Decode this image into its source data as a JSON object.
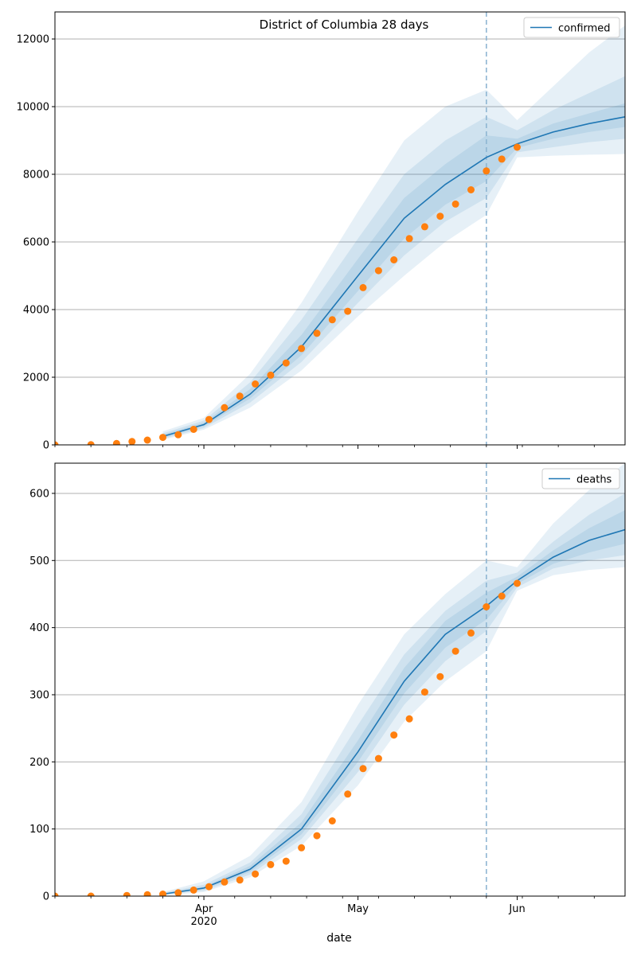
{
  "chart_data": [
    {
      "type": "line",
      "title": "District of Columbia 28 days",
      "xlabel": "",
      "ylabel": "",
      "ylim": [
        0,
        12800
      ],
      "yticks": [
        0,
        2000,
        4000,
        6000,
        8000,
        10000,
        12000
      ],
      "grid": "horizontal",
      "legend": {
        "placement": "top-right",
        "entries": [
          "confirmed"
        ]
      },
      "xlim": [
        "2020-03-03",
        "2020-06-22"
      ],
      "xticks": [
        {
          "date": "2020-04-01",
          "label": "Apr",
          "sublabel": "2020"
        },
        {
          "date": "2020-05-01",
          "label": "May",
          "sublabel": ""
        },
        {
          "date": "2020-06-01",
          "label": "Jun",
          "sublabel": ""
        }
      ],
      "forecast_start": "2020-05-26",
      "colors": {
        "line": "#1f77b4",
        "observed": "#ff7f0e",
        "band": "#1f77b4",
        "divider": "#8fb6d3"
      },
      "series": [
        {
          "name": "confirmed",
          "kind": "line",
          "x": [
            "2020-03-24",
            "2020-04-01",
            "2020-04-10",
            "2020-04-20",
            "2020-05-01",
            "2020-05-10",
            "2020-05-18",
            "2020-05-26",
            "2020-06-01",
            "2020-06-08",
            "2020-06-15",
            "2020-06-22"
          ],
          "y": [
            250,
            600,
            1500,
            2900,
            5000,
            6700,
            7700,
            8500,
            8900,
            9250,
            9500,
            9700
          ]
        },
        {
          "kind": "band",
          "x": [
            "2020-03-24",
            "2020-04-01",
            "2020-04-10",
            "2020-04-20",
            "2020-05-01",
            "2020-05-10",
            "2020-05-18",
            "2020-05-26",
            "2020-06-01",
            "2020-06-08",
            "2020-06-15",
            "2020-06-22"
          ],
          "lower": [
            150,
            450,
            1100,
            2200,
            3800,
            5000,
            6000,
            6800,
            8500,
            8550,
            8580,
            8600
          ],
          "upper": [
            400,
            800,
            2100,
            4200,
            6900,
            9000,
            10000,
            10500,
            9600,
            10600,
            11600,
            12400
          ]
        },
        {
          "kind": "band",
          "x": [
            "2020-03-24",
            "2020-04-01",
            "2020-04-10",
            "2020-04-20",
            "2020-05-01",
            "2020-05-10",
            "2020-05-18",
            "2020-05-26",
            "2020-06-01",
            "2020-06-08",
            "2020-06-15",
            "2020-06-22"
          ],
          "lower": [
            180,
            500,
            1250,
            2450,
            4200,
            5600,
            6600,
            7300,
            8650,
            8800,
            8950,
            9050
          ],
          "upper": [
            340,
            720,
            1850,
            3700,
            6100,
            8000,
            9000,
            9700,
            9300,
            9900,
            10400,
            10900
          ]
        },
        {
          "kind": "band",
          "x": [
            "2020-03-24",
            "2020-04-01",
            "2020-04-10",
            "2020-04-20",
            "2020-05-01",
            "2020-05-10",
            "2020-05-18",
            "2020-05-26",
            "2020-06-01",
            "2020-06-08",
            "2020-06-15",
            "2020-06-22"
          ],
          "lower": [
            210,
            550,
            1370,
            2650,
            4550,
            6100,
            7100,
            7800,
            8780,
            9050,
            9250,
            9400
          ],
          "upper": [
            300,
            660,
            1650,
            3250,
            5500,
            7300,
            8300,
            9150,
            9050,
            9500,
            9800,
            10100
          ]
        },
        {
          "name": "observed",
          "kind": "points",
          "x": [
            "2020-03-03",
            "2020-03-10",
            "2020-03-15",
            "2020-03-18",
            "2020-03-21",
            "2020-03-24",
            "2020-03-27",
            "2020-03-30",
            "2020-04-02",
            "2020-04-05",
            "2020-04-08",
            "2020-04-11",
            "2020-04-14",
            "2020-04-17",
            "2020-04-20",
            "2020-04-23",
            "2020-04-26",
            "2020-04-29",
            "2020-05-02",
            "2020-05-05",
            "2020-05-08",
            "2020-05-11",
            "2020-05-14",
            "2020-05-17",
            "2020-05-20",
            "2020-05-23",
            "2020-05-26",
            "2020-05-29",
            "2020-06-01"
          ],
          "y": [
            0,
            5,
            40,
            100,
            140,
            220,
            300,
            460,
            750,
            1100,
            1440,
            1800,
            2060,
            2420,
            2850,
            3300,
            3700,
            3950,
            4650,
            5150,
            5470,
            6100,
            6450,
            6760,
            7120,
            7540,
            8100,
            8450,
            8800
          ]
        }
      ]
    },
    {
      "type": "line",
      "title": "",
      "xlabel": "date",
      "ylabel": "",
      "ylim": [
        0,
        645
      ],
      "yticks": [
        0,
        100,
        200,
        300,
        400,
        500,
        600
      ],
      "grid": "horizontal",
      "legend": {
        "placement": "top-right",
        "entries": [
          "deaths"
        ]
      },
      "xlim": [
        "2020-03-03",
        "2020-06-22"
      ],
      "xticks": [
        {
          "date": "2020-04-01",
          "label": "Apr",
          "sublabel": "2020"
        },
        {
          "date": "2020-05-01",
          "label": "May",
          "sublabel": ""
        },
        {
          "date": "2020-06-01",
          "label": "Jun",
          "sublabel": ""
        }
      ],
      "forecast_start": "2020-05-26",
      "colors": {
        "line": "#1f77b4",
        "observed": "#ff7f0e",
        "band": "#1f77b4",
        "divider": "#8fb6d3"
      },
      "series": [
        {
          "name": "deaths",
          "kind": "line",
          "x": [
            "2020-03-24",
            "2020-04-01",
            "2020-04-10",
            "2020-04-20",
            "2020-05-01",
            "2020-05-10",
            "2020-05-18",
            "2020-05-26",
            "2020-06-01",
            "2020-06-08",
            "2020-06-15",
            "2020-06-22"
          ],
          "y": [
            3,
            12,
            40,
            100,
            215,
            320,
            390,
            432,
            470,
            505,
            530,
            546
          ]
        },
        {
          "kind": "band",
          "x": [
            "2020-03-24",
            "2020-04-01",
            "2020-04-10",
            "2020-04-20",
            "2020-05-01",
            "2020-05-10",
            "2020-05-18",
            "2020-05-26",
            "2020-06-01",
            "2020-06-08",
            "2020-06-15",
            "2020-06-22"
          ],
          "lower": [
            1,
            6,
            28,
            75,
            165,
            260,
            320,
            365,
            455,
            478,
            486,
            490
          ],
          "upper": [
            6,
            22,
            60,
            140,
            285,
            390,
            450,
            500,
            490,
            555,
            605,
            645
          ]
        },
        {
          "kind": "band",
          "x": [
            "2020-03-24",
            "2020-04-01",
            "2020-04-10",
            "2020-04-20",
            "2020-05-01",
            "2020-05-10",
            "2020-05-18",
            "2020-05-26",
            "2020-06-01",
            "2020-06-08",
            "2020-06-15",
            "2020-06-22"
          ],
          "lower": [
            2,
            8,
            32,
            85,
            185,
            285,
            350,
            395,
            460,
            488,
            500,
            508
          ],
          "upper": [
            5,
            17,
            50,
            122,
            255,
            360,
            425,
            470,
            482,
            528,
            568,
            600
          ]
        },
        {
          "kind": "band",
          "x": [
            "2020-03-24",
            "2020-04-01",
            "2020-04-10",
            "2020-04-20",
            "2020-05-01",
            "2020-05-10",
            "2020-05-18",
            "2020-05-26",
            "2020-06-01",
            "2020-06-08",
            "2020-06-15",
            "2020-06-22"
          ],
          "lower": [
            2.5,
            10,
            36,
            92,
            200,
            302,
            370,
            412,
            465,
            495,
            512,
            525
          ],
          "upper": [
            4,
            14,
            45,
            110,
            232,
            340,
            410,
            452,
            476,
            515,
            548,
            575
          ]
        },
        {
          "name": "observed",
          "kind": "points",
          "x": [
            "2020-03-03",
            "2020-03-10",
            "2020-03-17",
            "2020-03-21",
            "2020-03-24",
            "2020-03-27",
            "2020-03-30",
            "2020-04-02",
            "2020-04-05",
            "2020-04-08",
            "2020-04-11",
            "2020-04-14",
            "2020-04-17",
            "2020-04-20",
            "2020-04-23",
            "2020-04-26",
            "2020-04-29",
            "2020-05-02",
            "2020-05-05",
            "2020-05-08",
            "2020-05-11",
            "2020-05-14",
            "2020-05-17",
            "2020-05-20",
            "2020-05-23",
            "2020-05-26",
            "2020-05-29",
            "2020-06-01"
          ],
          "y": [
            0,
            0,
            1,
            2,
            3,
            5,
            9,
            14,
            21,
            24,
            33,
            47,
            52,
            72,
            90,
            112,
            152,
            190,
            205,
            240,
            264,
            304,
            327,
            365,
            392,
            431,
            447,
            466
          ]
        }
      ]
    }
  ]
}
